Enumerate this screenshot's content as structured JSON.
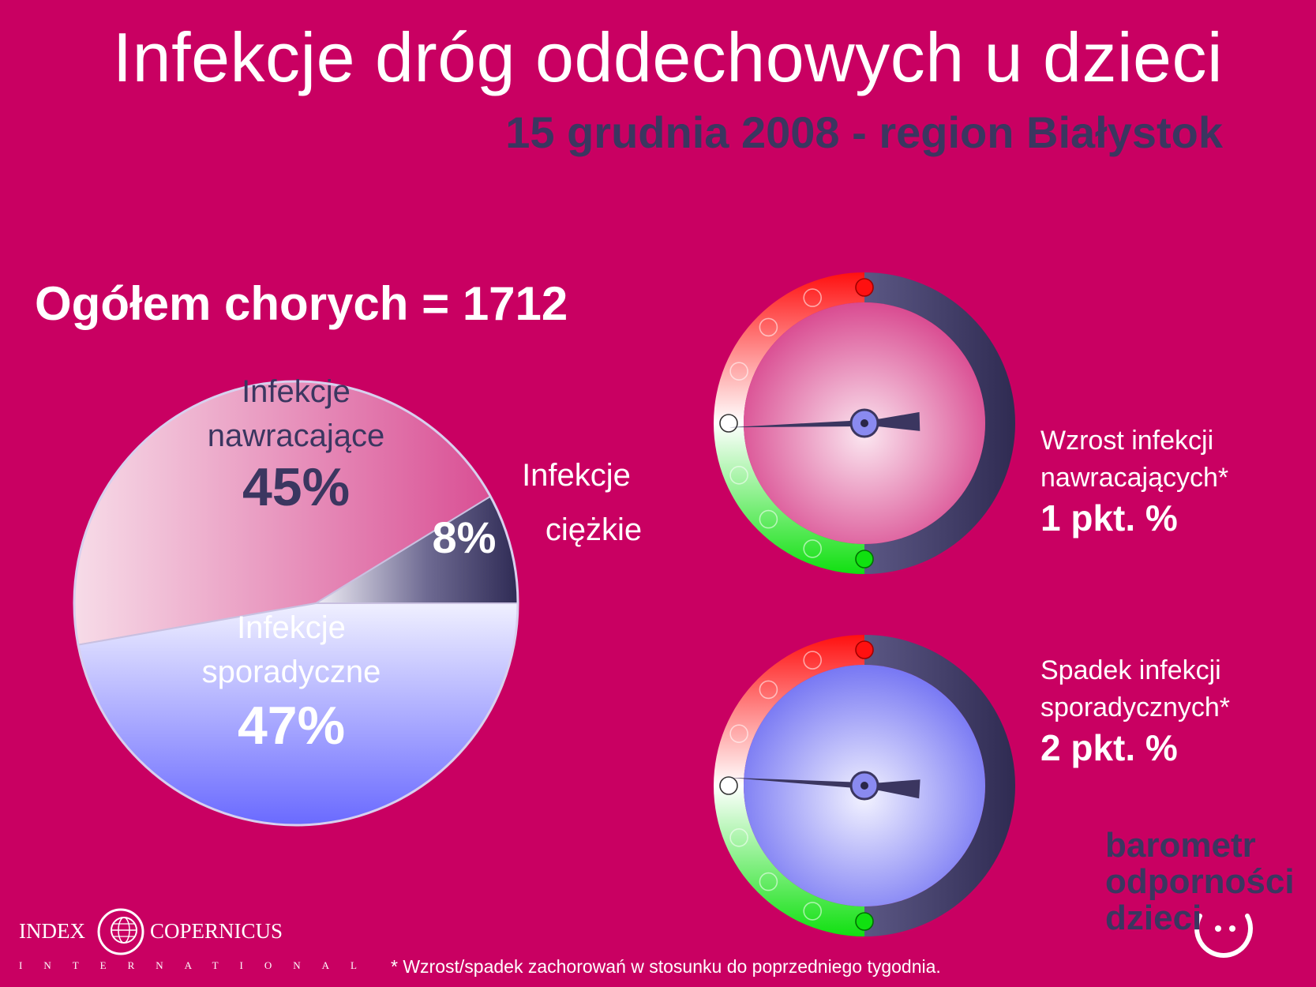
{
  "title": "Infekcje dróg oddechowych u dzieci",
  "subtitle": "15 grudnia 2008 - region Białystok",
  "total_label": "Ogółem chorych = 1712",
  "chart_data": [
    {
      "type": "pie",
      "title": "",
      "total": 1712,
      "slices": [
        {
          "label_line1": "Infekcje",
          "label_line2": "nawracające",
          "value": 45,
          "value_label": "45%",
          "color": "#e26aa4"
        },
        {
          "label_line1": "Infekcje",
          "label_line2": "ciężkie",
          "value": 8,
          "value_label": "8%",
          "color": "#3b3660"
        },
        {
          "label_line1": "Infekcje",
          "label_line2": "sporadyczne",
          "value": 47,
          "value_label": "47%",
          "color": "#8080ff"
        }
      ]
    }
  ],
  "gauges": [
    {
      "caption_line1": "Wzrost infekcji",
      "caption_line2": "nawracających*",
      "value_label": "1 pkt. %",
      "change": 1,
      "face_color": "#e26aa4"
    },
    {
      "caption_line1": "Spadek infekcji",
      "caption_line2": "sporadycznych*",
      "value_label": "2 pkt. %",
      "change": -2,
      "face_color": "#7a7af5"
    }
  ],
  "logo": {
    "line1": "barometr",
    "line2": "odporności",
    "line3": "dzieci",
    "icon": "smiley-icon"
  },
  "footnote": "* Wzrost/spadek zachorowań w stosunku do poprzedniego tygodnia.",
  "company": {
    "left": "INDEX",
    "right": "COPERNICUS",
    "sub": "INTERNATIONAL",
    "icon": "globe-icon"
  }
}
